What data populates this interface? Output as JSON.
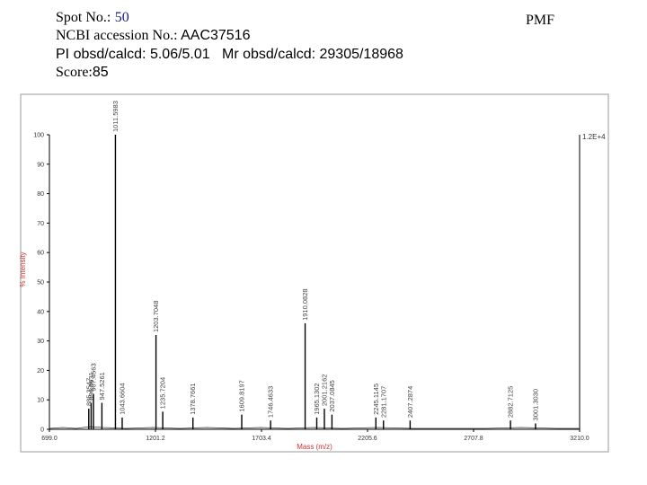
{
  "header": {
    "spot_label": "Spot No.:",
    "spot": "50",
    "accession_label": "NCBI accession No.:",
    "accession": "AAC37516",
    "pi_mr": "PI obsd/calcd: 5.06/5.01   Mr obsd/calcd: 29305/18968",
    "score_label": "Score:",
    "score": "85",
    "tag": "PMF"
  },
  "chart_data": {
    "type": "stick",
    "x": [
      885.3547,
      896.5631,
      907.4563,
      947.5261,
      1011.5983,
      1043.6604,
      1203.7048,
      1235.7204,
      1378.7661,
      1609.8197,
      1746.4633,
      1910.0828,
      1965.1302,
      2001.2162,
      2037.0845,
      2245.1145,
      2281.1707,
      2407.2874,
      2882.7125,
      {
        "value": 3001.303,
        "label": "3001.3030"
      }
    ],
    "values": [
      7,
      9,
      12,
      9,
      100,
      4,
      32,
      6,
      4,
      5,
      3,
      36,
      4,
      7,
      5,
      4,
      3,
      3,
      3,
      2
    ],
    "color": "#000000",
    "xlabel": "Mass (m/z)",
    "ylabel": "% Intensity",
    "annotation": "1.2E+4",
    "xlim": [
      699,
      3210
    ],
    "xticks": [
      {
        "value": 699,
        "label": "699.0"
      },
      {
        "value": 1201.2,
        "label": "1201.2"
      },
      {
        "value": 1703.4,
        "label": "1703.4"
      },
      {
        "value": 2205.6,
        "label": "2205.6"
      },
      {
        "value": 2707.8,
        "label": "2707.8"
      },
      {
        "value": 3210,
        "label": "3210.0"
      }
    ],
    "ylim": [
      0,
      100
    ],
    "yticks": [
      0,
      10,
      20,
      30,
      40,
      50,
      60,
      70,
      80,
      90,
      100
    ]
  }
}
